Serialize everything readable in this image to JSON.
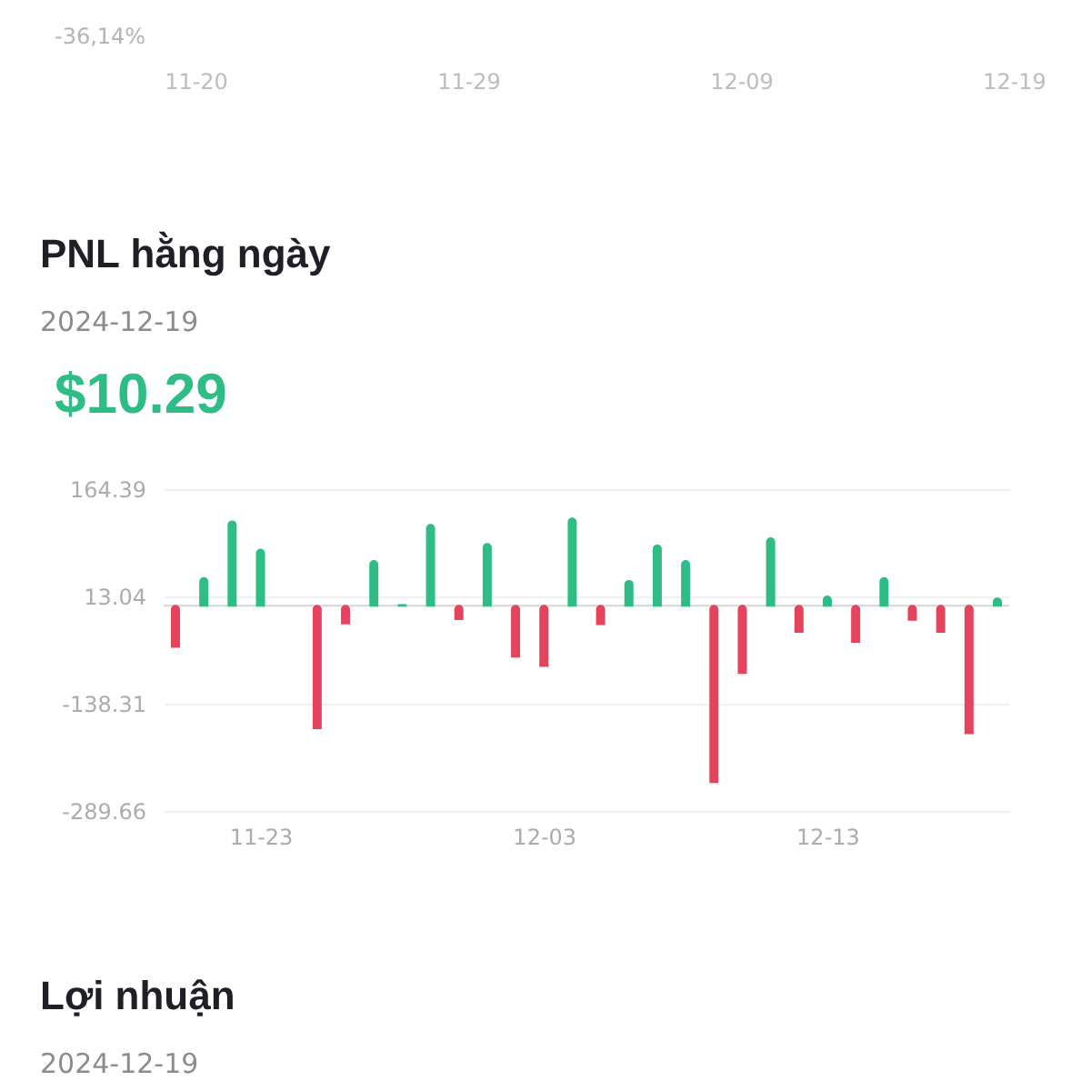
{
  "chart_data": [
    {
      "type": "other",
      "annotations": [
        "-36,14%",
        "11-20",
        "11-29",
        "12-09",
        "12-19"
      ]
    },
    {
      "type": "bar",
      "title": "PNL hằng ngày",
      "subtitle": "2024-12-19",
      "annotations": [
        "$10.29"
      ],
      "x": [
        "2024-11-20",
        "2024-11-21",
        "2024-11-22",
        "2024-11-23",
        "2024-11-24",
        "2024-11-25",
        "2024-11-26",
        "2024-11-27",
        "2024-11-28",
        "2024-11-29",
        "2024-11-30",
        "2024-12-01",
        "2024-12-02",
        "2024-12-03",
        "2024-12-04",
        "2024-12-05",
        "2024-12-06",
        "2024-12-07",
        "2024-12-08",
        "2024-12-09",
        "2024-12-10",
        "2024-12-11",
        "2024-12-12",
        "2024-12-13",
        "2024-12-14",
        "2024-12-15",
        "2024-12-16",
        "2024-12-17",
        "2024-12-18",
        "2024-12-19"
      ],
      "values": [
        -58,
        39,
        119,
        79,
        null,
        -173,
        -25,
        63,
        1,
        114,
        -19,
        87,
        -72,
        -85,
        123,
        -26,
        35,
        85,
        63,
        -249,
        -95,
        95,
        -37,
        13,
        -51,
        39,
        -20,
        -37,
        -180,
        10.29
      ],
      "colors": [
        "#e4455d",
        "#2ebd85",
        "#2ebd85",
        "#2ebd85",
        "#2ebd85",
        "#e4455d",
        "#e4455d",
        "#2ebd85",
        "#2ebd85",
        "#2ebd85",
        "#e4455d",
        "#2ebd85",
        "#e4455d",
        "#e4455d",
        "#2ebd85",
        "#e4455d",
        "#2ebd85",
        "#2ebd85",
        "#2ebd85",
        "#e4455d",
        "#e4455d",
        "#2ebd85",
        "#e4455d",
        "#2ebd85",
        "#e4455d",
        "#2ebd85",
        "#e4455d",
        "#e4455d",
        "#e4455d",
        "#2ebd85"
      ],
      "xlim": [
        "2024-11-19T14:00",
        "2024-12-19T10:00"
      ],
      "xticks": [
        {
          "value": "2024-11-23",
          "label": "11-23"
        },
        {
          "value": "2024-12-03",
          "label": "12-03"
        },
        {
          "value": "2024-12-13",
          "label": "12-13"
        }
      ],
      "ylim": [
        -289.66,
        164.39
      ],
      "yticks": [
        -289.66,
        -138.31,
        13.04,
        164.39
      ],
      "grid": "y",
      "ref_lines": [
        {
          "axis": "y",
          "value": 0,
          "color": "#d6d6d6"
        }
      ]
    },
    {
      "type": "other",
      "title": "Lợi nhuận",
      "subtitle": "2024-12-19"
    }
  ]
}
